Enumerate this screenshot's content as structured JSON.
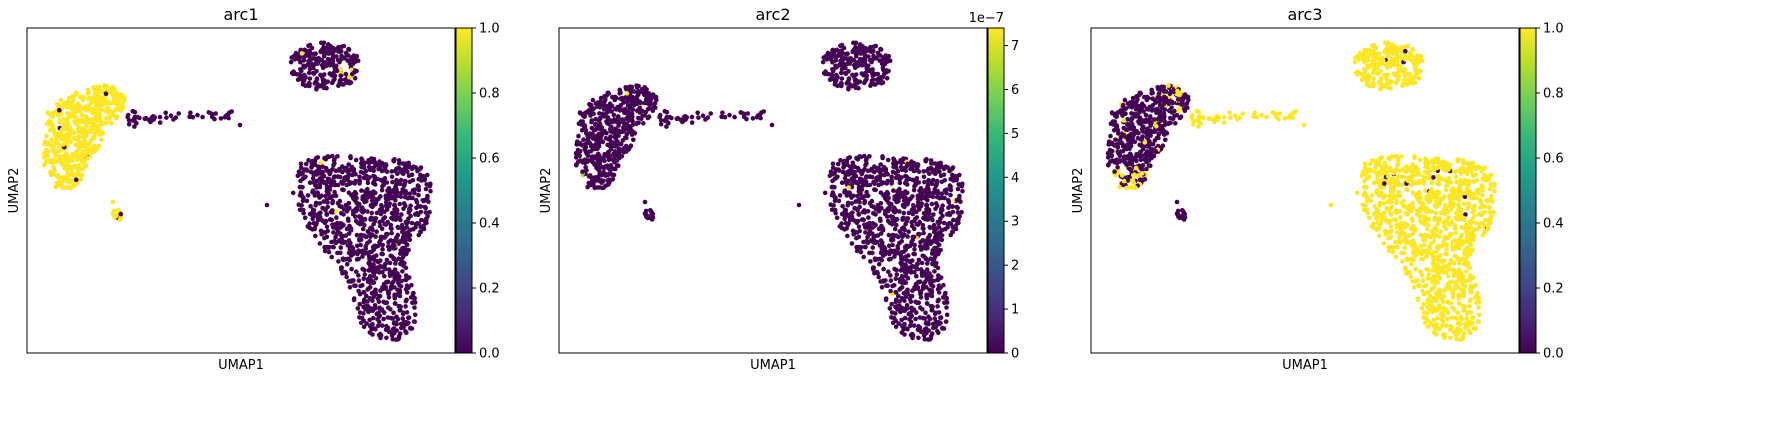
{
  "chart_data": [
    {
      "type": "scatter",
      "title": "arc1",
      "xlabel": "UMAP1",
      "ylabel": "UMAP2",
      "colormap": "viridis",
      "colorbar": {
        "range": [
          0.0,
          1.0
        ],
        "ticks": [
          "0.0",
          "0.2",
          "0.4",
          "0.6",
          "0.8",
          "1.0"
        ],
        "offset": ""
      },
      "cluster_values": {
        "left_arm": 1.0,
        "left_tail": 0.0,
        "left_small": 1.0,
        "top_right": 0.0,
        "bottom_right": 0.0,
        "outliers": 0.0
      }
    },
    {
      "type": "scatter",
      "title": "arc2",
      "xlabel": "UMAP1",
      "ylabel": "UMAP2",
      "colormap": "viridis",
      "colorbar": {
        "range": [
          0,
          7.4
        ],
        "ticks": [
          "0",
          "1",
          "2",
          "3",
          "4",
          "5",
          "6",
          "7"
        ],
        "offset": "1e−7"
      },
      "cluster_values": {
        "left_arm": 0.0,
        "left_tail": 0.0,
        "left_small": 0.0,
        "top_right": 0.0,
        "bottom_right": 0.0,
        "outliers": 0.0
      }
    },
    {
      "type": "scatter",
      "title": "arc3",
      "xlabel": "UMAP1",
      "ylabel": "UMAP2",
      "colormap": "viridis",
      "colorbar": {
        "range": [
          0.0,
          1.0
        ],
        "ticks": [
          "0.0",
          "0.2",
          "0.4",
          "0.6",
          "0.8",
          "1.0"
        ],
        "offset": ""
      },
      "cluster_values": {
        "left_arm": 0.0,
        "left_tail": 1.0,
        "left_small": 0.0,
        "top_right": 1.0,
        "bottom_right": 1.0,
        "outliers": 1.0
      }
    }
  ]
}
